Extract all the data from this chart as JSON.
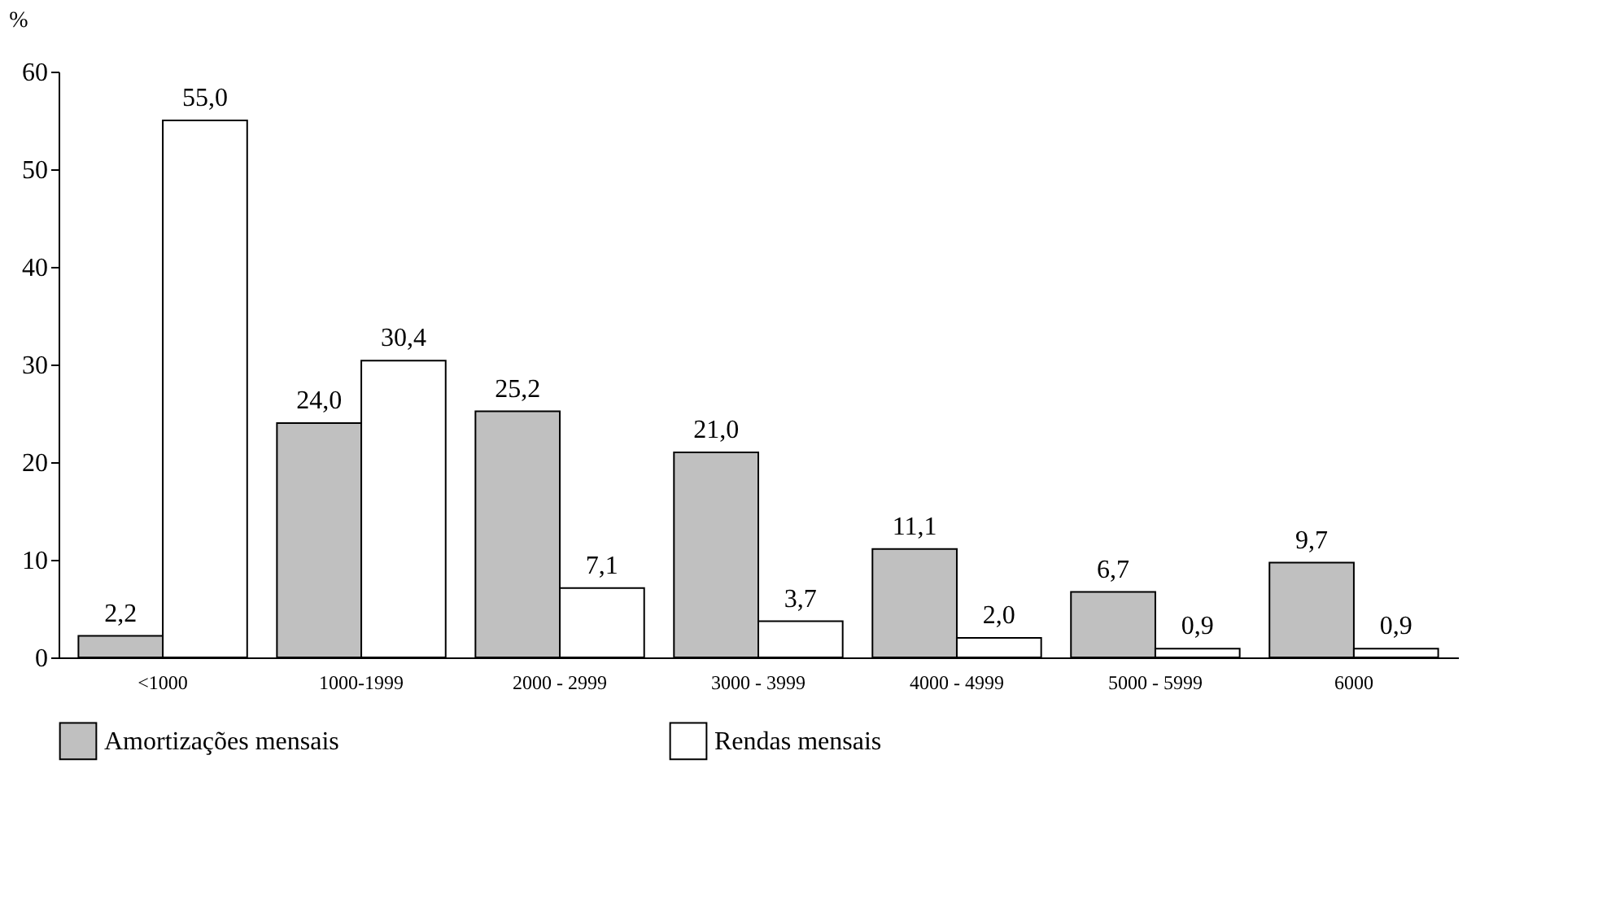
{
  "chart_data": {
    "type": "bar",
    "ylabel": "%",
    "categories": [
      "<1000",
      "1000-1999",
      "2000 - 2999",
      "3000 - 3999",
      "4000 - 4999",
      "5000 - 5999",
      "6000"
    ],
    "series": [
      {
        "name": "Amortizações mensais",
        "color": "#c0c0c0",
        "values": [
          2.2,
          24.0,
          25.2,
          21.0,
          11.1,
          6.7,
          9.7
        ],
        "value_labels": [
          "2,2",
          "24,0",
          "25,2",
          "21,0",
          "11,1",
          "6,7",
          "9,7"
        ]
      },
      {
        "name": "Rendas mensais",
        "color": "#ffffff",
        "values": [
          55.0,
          30.4,
          7.1,
          3.7,
          2.0,
          0.9,
          0.9
        ],
        "value_labels": [
          "55,0",
          "30,4",
          "7,1",
          "3,7",
          "2,0",
          "0,9",
          "0,9"
        ]
      }
    ],
    "ylim": [
      0,
      60
    ],
    "yticks": [
      0,
      10,
      20,
      30,
      40,
      50,
      60
    ],
    "grid": false,
    "legend": "bottom"
  }
}
